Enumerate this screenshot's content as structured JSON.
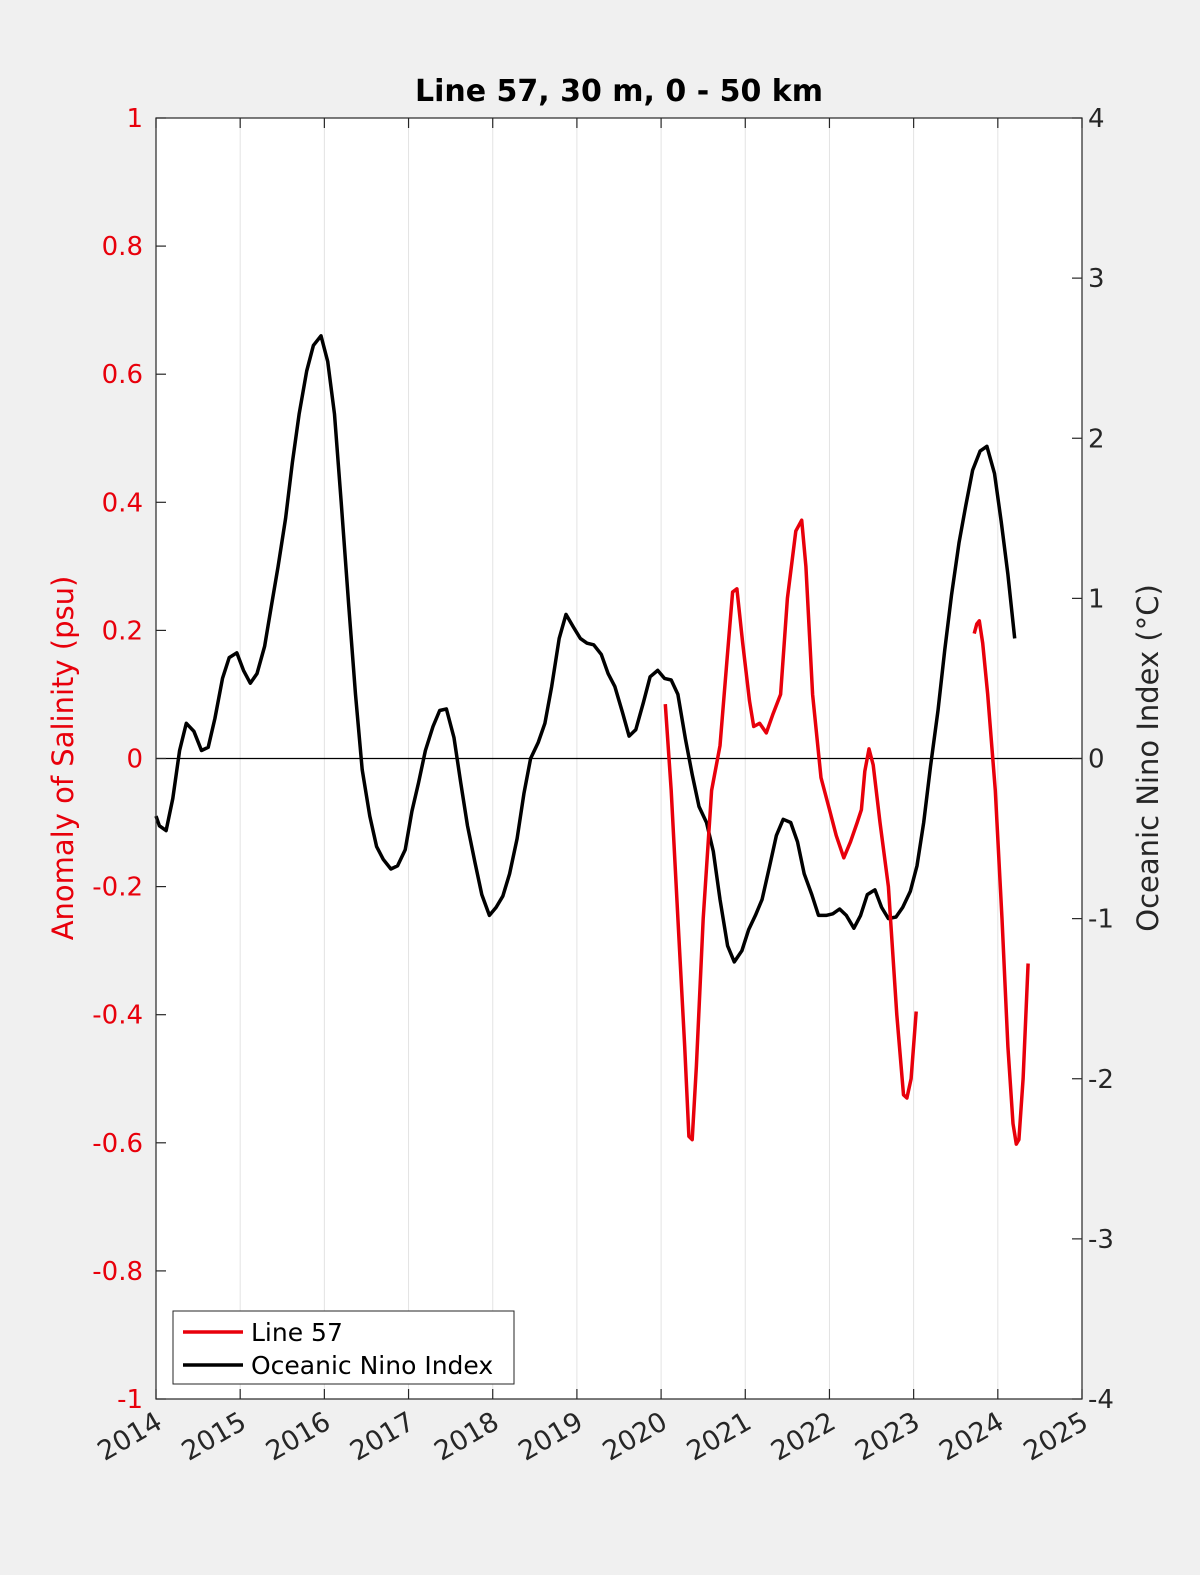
{
  "chart_data": {
    "type": "line",
    "title": "Line 57, 30 m, 0 - 50 km",
    "xlabel": "",
    "ylabel_left": "Anomaly of Salinity (psu)",
    "ylabel_right": "Oceanic Nino Index (°C)",
    "xlim": [
      2014,
      2025
    ],
    "ylim_left": [
      -1,
      1
    ],
    "ylim_right": [
      -4,
      4
    ],
    "x_ticks": [
      "2014",
      "2015",
      "2016",
      "2017",
      "2018",
      "2019",
      "2020",
      "2021",
      "2022",
      "2023",
      "2024",
      "2025"
    ],
    "y_ticks_left": [
      "-1",
      "-0.8",
      "-0.6",
      "-0.4",
      "-0.2",
      "0",
      "0.2",
      "0.4",
      "0.6",
      "0.8",
      "1"
    ],
    "y_ticks_right": [
      "-4",
      "-3",
      "-2",
      "-1",
      "0",
      "1",
      "2",
      "3",
      "4"
    ],
    "grid": "vertical",
    "legend_position": "bottom-left",
    "colors": {
      "line57": "#e8000b",
      "oni": "#000000",
      "left_axis": "#e8000b",
      "right_axis": "#262626"
    },
    "series": [
      {
        "name": "Line 57",
        "axis": "left",
        "segments": [
          [
            [
              2020.05,
              0.085
            ],
            [
              2020.12,
              -0.05
            ],
            [
              2020.2,
              -0.25
            ],
            [
              2020.28,
              -0.45
            ],
            [
              2020.33,
              -0.59
            ],
            [
              2020.37,
              -0.595
            ],
            [
              2020.42,
              -0.48
            ],
            [
              2020.5,
              -0.25
            ],
            [
              2020.6,
              -0.05
            ],
            [
              2020.7,
              0.02
            ],
            [
              2020.78,
              0.15
            ],
            [
              2020.85,
              0.26
            ],
            [
              2020.9,
              0.265
            ],
            [
              2020.97,
              0.18
            ],
            [
              2021.05,
              0.09
            ],
            [
              2021.1,
              0.05
            ],
            [
              2021.17,
              0.055
            ],
            [
              2021.25,
              0.04
            ],
            [
              2021.33,
              0.07
            ],
            [
              2021.42,
              0.1
            ],
            [
              2021.5,
              0.25
            ],
            [
              2021.6,
              0.355
            ],
            [
              2021.67,
              0.372
            ],
            [
              2021.72,
              0.3
            ],
            [
              2021.8,
              0.1
            ],
            [
              2021.9,
              -0.03
            ],
            [
              2022.0,
              -0.08
            ],
            [
              2022.08,
              -0.12
            ],
            [
              2022.17,
              -0.155
            ],
            [
              2022.25,
              -0.13
            ],
            [
              2022.33,
              -0.1
            ],
            [
              2022.38,
              -0.08
            ],
            [
              2022.42,
              -0.02
            ],
            [
              2022.47,
              0.015
            ],
            [
              2022.52,
              -0.01
            ],
            [
              2022.6,
              -0.1
            ],
            [
              2022.7,
              -0.2
            ],
            [
              2022.8,
              -0.4
            ],
            [
              2022.88,
              -0.525
            ],
            [
              2022.92,
              -0.53
            ],
            [
              2022.97,
              -0.5
            ],
            [
              2023.03,
              -0.395
            ]
          ],
          [
            [
              2023.72,
              0.195
            ],
            [
              2023.75,
              0.21
            ],
            [
              2023.78,
              0.215
            ],
            [
              2023.82,
              0.18
            ],
            [
              2023.88,
              0.1
            ],
            [
              2023.97,
              -0.05
            ],
            [
              2024.05,
              -0.25
            ],
            [
              2024.12,
              -0.45
            ],
            [
              2024.18,
              -0.57
            ],
            [
              2024.22,
              -0.602
            ],
            [
              2024.25,
              -0.595
            ],
            [
              2024.3,
              -0.5
            ],
            [
              2024.36,
              -0.32
            ]
          ]
        ]
      },
      {
        "name": "Oceanic Nino Index",
        "axis": "right",
        "points": [
          [
            2014.0,
            -0.36
          ],
          [
            2014.04,
            -0.42
          ],
          [
            2014.12,
            -0.45
          ],
          [
            2014.2,
            -0.25
          ],
          [
            2014.28,
            0.05
          ],
          [
            2014.36,
            0.22
          ],
          [
            2014.45,
            0.17
          ],
          [
            2014.54,
            0.05
          ],
          [
            2014.62,
            0.07
          ],
          [
            2014.7,
            0.25
          ],
          [
            2014.79,
            0.5
          ],
          [
            2014.87,
            0.63
          ],
          [
            2014.96,
            0.66
          ],
          [
            2015.04,
            0.55
          ],
          [
            2015.12,
            0.47
          ],
          [
            2015.2,
            0.53
          ],
          [
            2015.29,
            0.7
          ],
          [
            2015.37,
            0.95
          ],
          [
            2015.45,
            1.2
          ],
          [
            2015.54,
            1.5
          ],
          [
            2015.62,
            1.85
          ],
          [
            2015.7,
            2.15
          ],
          [
            2015.79,
            2.42
          ],
          [
            2015.87,
            2.58
          ],
          [
            2015.96,
            2.64
          ],
          [
            2016.04,
            2.48
          ],
          [
            2016.12,
            2.15
          ],
          [
            2016.2,
            1.6
          ],
          [
            2016.29,
            0.95
          ],
          [
            2016.37,
            0.4
          ],
          [
            2016.45,
            -0.07
          ],
          [
            2016.54,
            -0.36
          ],
          [
            2016.62,
            -0.55
          ],
          [
            2016.7,
            -0.63
          ],
          [
            2016.79,
            -0.69
          ],
          [
            2016.87,
            -0.67
          ],
          [
            2016.96,
            -0.57
          ],
          [
            2017.04,
            -0.33
          ],
          [
            2017.12,
            -0.15
          ],
          [
            2017.2,
            0.05
          ],
          [
            2017.29,
            0.2
          ],
          [
            2017.37,
            0.3
          ],
          [
            2017.45,
            0.31
          ],
          [
            2017.54,
            0.13
          ],
          [
            2017.62,
            -0.15
          ],
          [
            2017.7,
            -0.42
          ],
          [
            2017.79,
            -0.65
          ],
          [
            2017.87,
            -0.85
          ],
          [
            2017.96,
            -0.98
          ],
          [
            2018.04,
            -0.93
          ],
          [
            2018.12,
            -0.86
          ],
          [
            2018.2,
            -0.72
          ],
          [
            2018.29,
            -0.5
          ],
          [
            2018.37,
            -0.22
          ],
          [
            2018.45,
            0.0
          ],
          [
            2018.54,
            0.1
          ],
          [
            2018.62,
            0.22
          ],
          [
            2018.7,
            0.45
          ],
          [
            2018.79,
            0.75
          ],
          [
            2018.87,
            0.9
          ],
          [
            2018.96,
            0.82
          ],
          [
            2019.04,
            0.75
          ],
          [
            2019.12,
            0.72
          ],
          [
            2019.2,
            0.71
          ],
          [
            2019.29,
            0.65
          ],
          [
            2019.37,
            0.53
          ],
          [
            2019.45,
            0.45
          ],
          [
            2019.54,
            0.29
          ],
          [
            2019.62,
            0.14
          ],
          [
            2019.7,
            0.18
          ],
          [
            2019.79,
            0.35
          ],
          [
            2019.87,
            0.51
          ],
          [
            2019.96,
            0.55
          ],
          [
            2020.04,
            0.5
          ],
          [
            2020.12,
            0.49
          ],
          [
            2020.2,
            0.4
          ],
          [
            2020.29,
            0.12
          ],
          [
            2020.37,
            -0.1
          ],
          [
            2020.45,
            -0.3
          ],
          [
            2020.54,
            -0.4
          ],
          [
            2020.62,
            -0.58
          ],
          [
            2020.7,
            -0.88
          ],
          [
            2020.79,
            -1.17
          ],
          [
            2020.87,
            -1.27
          ],
          [
            2020.96,
            -1.2
          ],
          [
            2021.04,
            -1.07
          ],
          [
            2021.12,
            -0.98
          ],
          [
            2021.2,
            -0.88
          ],
          [
            2021.29,
            -0.67
          ],
          [
            2021.37,
            -0.48
          ],
          [
            2021.45,
            -0.38
          ],
          [
            2021.54,
            -0.4
          ],
          [
            2021.62,
            -0.52
          ],
          [
            2021.7,
            -0.72
          ],
          [
            2021.79,
            -0.85
          ],
          [
            2021.87,
            -0.98
          ],
          [
            2021.96,
            -0.98
          ],
          [
            2022.04,
            -0.97
          ],
          [
            2022.12,
            -0.94
          ],
          [
            2022.2,
            -0.98
          ],
          [
            2022.29,
            -1.06
          ],
          [
            2022.37,
            -0.98
          ],
          [
            2022.45,
            -0.85
          ],
          [
            2022.54,
            -0.82
          ],
          [
            2022.62,
            -0.93
          ],
          [
            2022.7,
            -1.0
          ],
          [
            2022.79,
            -0.99
          ],
          [
            2022.87,
            -0.93
          ],
          [
            2022.96,
            -0.83
          ],
          [
            2023.04,
            -0.67
          ],
          [
            2023.12,
            -0.4
          ],
          [
            2023.2,
            -0.05
          ],
          [
            2023.29,
            0.3
          ],
          [
            2023.37,
            0.68
          ],
          [
            2023.45,
            1.02
          ],
          [
            2023.54,
            1.35
          ],
          [
            2023.62,
            1.58
          ],
          [
            2023.7,
            1.8
          ],
          [
            2023.79,
            1.92
          ],
          [
            2023.87,
            1.95
          ],
          [
            2023.96,
            1.78
          ],
          [
            2024.04,
            1.48
          ],
          [
            2024.12,
            1.15
          ],
          [
            2024.2,
            0.75
          ]
        ]
      }
    ]
  }
}
